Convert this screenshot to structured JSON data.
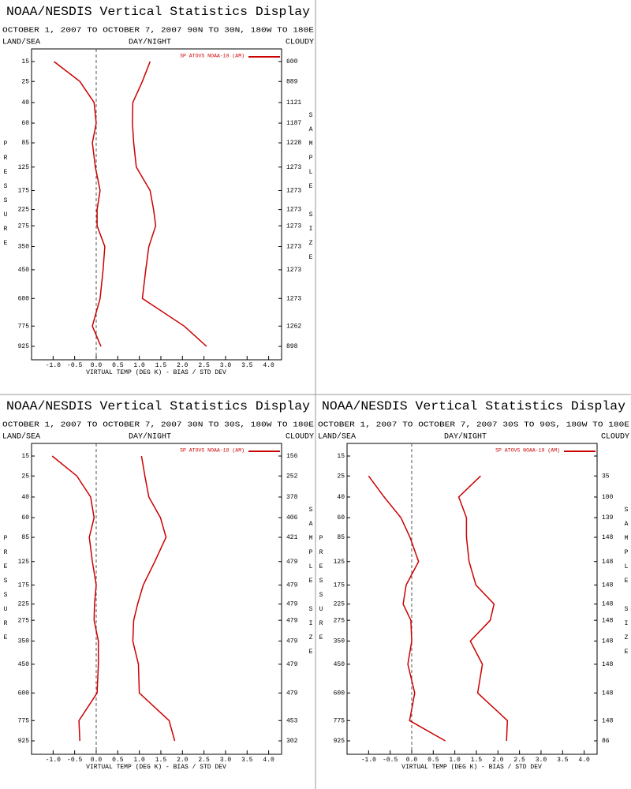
{
  "chart_data": [
    {
      "type": "line",
      "title": "NOAA/NESDIS Vertical Statistics Display",
      "subtitle": "OCTOBER 1, 2007 TO OCTOBER 7, 2007 90N TO 30N, 180W TO 180E",
      "left_header": "LAND/SEA",
      "center_header": "DAY/NIGHT",
      "right_header": "CLOUDY",
      "legend": "SP ATOVS NOAA-18 (AM)",
      "ylabel": "PRESSURE",
      "y2label": "SAMPLE SIZE",
      "xlabel": "VIRTUAL TEMP (DEG K) - BIAS / STD DEV",
      "y": [
        15,
        25,
        40,
        60,
        85,
        125,
        175,
        225,
        275,
        350,
        450,
        600,
        775,
        925
      ],
      "ylim": [
        15,
        925
      ],
      "yticks": [
        15,
        25,
        40,
        60,
        85,
        125,
        175,
        225,
        275,
        350,
        450,
        600,
        775,
        925
      ],
      "y_scale_exponent": 0.286,
      "y_inverted": true,
      "xlim": [
        -1.5,
        4.3
      ],
      "xticks": [
        {
          "value": -1,
          "label": "-1.0"
        },
        -0.5,
        {
          "value": 0,
          "label": "0.0"
        },
        0.5,
        {
          "value": 1,
          "label": "1.0"
        },
        1.5,
        {
          "value": 2,
          "label": "2.0"
        },
        2.5,
        {
          "value": 3,
          "label": "3.0"
        },
        3.5,
        {
          "value": 4,
          "label": "4.0"
        }
      ],
      "sample_size": [
        600,
        889,
        1121,
        1187,
        1228,
        1273,
        1273,
        1273,
        1273,
        1273,
        1273,
        1273,
        1262,
        898
      ],
      "series": [
        {
          "color": "#cc0000",
          "values": [
            -0.98,
            -0.38,
            -0.05,
            0,
            -0.09,
            -0.02,
            0.09,
            0.02,
            0.02,
            0.2,
            0.16,
            0.09,
            -0.09,
            0.11
          ]
        },
        {
          "color": "#cc0000",
          "values": [
            1.25,
            1.07,
            0.85,
            0.84,
            0.87,
            0.93,
            1.25,
            1.33,
            1.38,
            1.22,
            1.15,
            1.07,
            2.04,
            2.56
          ]
        }
      ]
    },
    {
      "type": "line",
      "title": "NOAA/NESDIS Vertical Statistics Display",
      "subtitle": "OCTOBER 1, 2007 TO OCTOBER 7, 2007 30N TO 30S, 180W TO 180E",
      "left_header": "LAND/SEA",
      "center_header": "DAY/NIGHT",
      "right_header": "CLOUDY",
      "legend": "SP ATOVS NOAA-18 (AM)",
      "ylabel": "PRESSURE",
      "y2label": "SAMPLE SIZE",
      "xlabel": "VIRTUAL TEMP (DEG K) - BIAS / STD DEV",
      "y": [
        15,
        25,
        40,
        60,
        85,
        125,
        175,
        225,
        275,
        350,
        450,
        600,
        775,
        925
      ],
      "ylim": [
        15,
        925
      ],
      "yticks": [
        15,
        25,
        40,
        60,
        85,
        125,
        175,
        225,
        275,
        350,
        450,
        600,
        775,
        925
      ],
      "y_scale_exponent": 0.286,
      "y_inverted": true,
      "xlim": [
        -1.5,
        4.3
      ],
      "xticks": [
        {
          "value": -1,
          "label": "-1.0"
        },
        -0.5,
        {
          "value": 0,
          "label": "0.0"
        },
        0.5,
        {
          "value": 1,
          "label": "1.0"
        },
        1.5,
        {
          "value": 2,
          "label": "2.0"
        },
        2.5,
        {
          "value": 3,
          "label": "3.0"
        },
        3.5,
        {
          "value": 4,
          "label": "4.0"
        }
      ],
      "sample_size": [
        156,
        252,
        378,
        406,
        421,
        479,
        479,
        479,
        479,
        479,
        479,
        479,
        453,
        302
      ],
      "series": [
        {
          "color": "#cc0000",
          "values": [
            -1.02,
            -0.45,
            -0.13,
            -0.05,
            -0.16,
            -0.09,
            0,
            -0.04,
            -0.05,
            0.05,
            0.05,
            0.02,
            -0.4,
            -0.38
          ]
        },
        {
          "color": "#cc0000",
          "values": [
            1.05,
            1.13,
            1.22,
            1.49,
            1.62,
            1.36,
            1.09,
            0.96,
            0.87,
            0.85,
            0.98,
            1.0,
            1.69,
            1.82
          ]
        }
      ]
    },
    {
      "type": "line",
      "title": "NOAA/NESDIS Vertical Statistics Display",
      "subtitle": "OCTOBER 1, 2007 TO OCTOBER 7, 2007 30S TO 90S, 180W TO 180E",
      "left_header": "LAND/SEA",
      "center_header": "DAY/NIGHT",
      "right_header": "CLOUDY",
      "legend": "SP ATOVS NOAA-18 (AM)",
      "ylabel": "PRESSURE",
      "y2label": "SAMPLE SIZE",
      "xlabel": "VIRTUAL TEMP (DEG K) - BIAS / STD DEV",
      "y": [
        15,
        25,
        40,
        60,
        85,
        125,
        175,
        225,
        275,
        350,
        450,
        600,
        775,
        925
      ],
      "ylim": [
        15,
        925
      ],
      "yticks": [
        15,
        25,
        40,
        60,
        85,
        125,
        175,
        225,
        275,
        350,
        450,
        600,
        775,
        925
      ],
      "y_scale_exponent": 0.286,
      "y_inverted": true,
      "xlim": [
        -1.5,
        4.3
      ],
      "xticks": [
        {
          "value": -1,
          "label": "-1.0"
        },
        -0.5,
        {
          "value": 0,
          "label": "0.0"
        },
        0.5,
        {
          "value": 1,
          "label": "1.0"
        },
        1.5,
        {
          "value": 2,
          "label": "2.0"
        },
        2.5,
        {
          "value": 3,
          "label": "3.0"
        },
        3.5,
        {
          "value": 4,
          "label": "4.0"
        }
      ],
      "sample_size": [
        null,
        35,
        100,
        139,
        148,
        148,
        148,
        148,
        148,
        148,
        148,
        148,
        148,
        86
      ],
      "series": [
        {
          "color": "#cc0000",
          "values": [
            null,
            -1.0,
            -0.64,
            -0.25,
            -0.04,
            0.16,
            -0.13,
            -0.2,
            -0.02,
            0,
            -0.09,
            0.07,
            -0.05,
            0.78
          ]
        },
        {
          "color": "#cc0000",
          "values": [
            null,
            1.6,
            1.09,
            1.27,
            1.27,
            1.33,
            1.49,
            1.91,
            1.82,
            1.36,
            1.64,
            1.53,
            2.22,
            2.2
          ]
        }
      ]
    }
  ]
}
